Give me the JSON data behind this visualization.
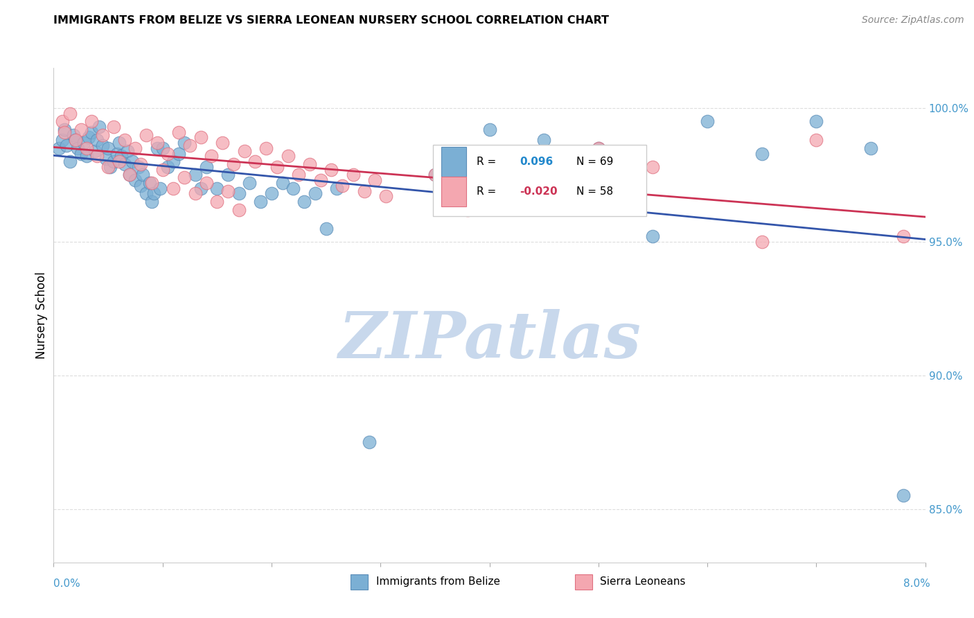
{
  "title": "IMMIGRANTS FROM BELIZE VS SIERRA LEONEAN NURSERY SCHOOL CORRELATION CHART",
  "source": "Source: ZipAtlas.com",
  "ylabel": "Nursery School",
  "xlim": [
    0.0,
    8.0
  ],
  "ylim": [
    83.0,
    101.5
  ],
  "yticks": [
    85.0,
    90.0,
    95.0,
    100.0
  ],
  "ytick_labels": [
    "85.0%",
    "90.0%",
    "95.0%",
    "100.0%"
  ],
  "xticks": [
    0.0,
    1.0,
    2.0,
    3.0,
    4.0,
    5.0,
    6.0,
    7.0,
    8.0
  ],
  "belize_color": "#7BAFD4",
  "belize_edge": "#5B8DB8",
  "sierra_color": "#F4A7B0",
  "sierra_edge": "#E07080",
  "belize_trend_color": "#3355AA",
  "sierra_trend_color": "#CC3355",
  "belize_x": [
    0.05,
    0.08,
    0.1,
    0.12,
    0.15,
    0.18,
    0.2,
    0.22,
    0.25,
    0.28,
    0.3,
    0.32,
    0.35,
    0.38,
    0.4,
    0.42,
    0.45,
    0.48,
    0.5,
    0.52,
    0.55,
    0.58,
    0.6,
    0.62,
    0.65,
    0.68,
    0.7,
    0.72,
    0.75,
    0.78,
    0.8,
    0.82,
    0.85,
    0.88,
    0.9,
    0.92,
    0.95,
    0.98,
    1.0,
    1.05,
    1.1,
    1.15,
    1.2,
    1.3,
    1.35,
    1.4,
    1.5,
    1.6,
    1.7,
    1.8,
    1.9,
    2.0,
    2.1,
    2.2,
    2.3,
    2.4,
    2.5,
    2.6,
    3.5,
    4.0,
    4.5,
    5.0,
    5.5,
    6.0,
    6.5,
    7.0,
    7.5,
    7.8,
    2.9
  ],
  "belize_y": [
    98.5,
    98.8,
    99.2,
    98.6,
    98.0,
    99.0,
    98.8,
    98.5,
    98.3,
    98.7,
    98.2,
    98.9,
    99.1,
    98.4,
    98.8,
    99.3,
    98.6,
    98.1,
    98.5,
    97.8,
    98.0,
    98.3,
    98.7,
    98.2,
    97.9,
    98.4,
    97.5,
    98.0,
    97.3,
    97.8,
    97.1,
    97.5,
    96.8,
    97.2,
    96.5,
    96.8,
    98.5,
    97.0,
    98.5,
    97.8,
    98.0,
    98.3,
    98.7,
    97.5,
    97.0,
    97.8,
    97.0,
    97.5,
    96.8,
    97.2,
    96.5,
    96.8,
    97.2,
    97.0,
    96.5,
    96.8,
    95.5,
    97.0,
    97.5,
    99.2,
    98.8,
    98.5,
    95.2,
    99.5,
    98.3,
    99.5,
    98.5,
    85.5,
    87.5
  ],
  "sierra_x": [
    0.08,
    0.15,
    0.25,
    0.35,
    0.45,
    0.55,
    0.65,
    0.75,
    0.85,
    0.95,
    1.05,
    1.15,
    1.25,
    1.35,
    1.45,
    1.55,
    1.65,
    1.75,
    1.85,
    1.95,
    2.05,
    2.15,
    2.25,
    2.35,
    2.45,
    2.55,
    2.65,
    2.75,
    2.85,
    2.95,
    3.05,
    3.5,
    3.8,
    4.0,
    4.2,
    4.5,
    5.0,
    5.5,
    6.5,
    7.0,
    7.8,
    0.1,
    0.2,
    0.3,
    0.4,
    0.5,
    0.6,
    0.7,
    0.8,
    0.9,
    1.0,
    1.1,
    1.2,
    1.3,
    1.4,
    1.5,
    1.6,
    1.7
  ],
  "sierra_y": [
    99.5,
    99.8,
    99.2,
    99.5,
    99.0,
    99.3,
    98.8,
    98.5,
    99.0,
    98.7,
    98.3,
    99.1,
    98.6,
    98.9,
    98.2,
    98.7,
    97.9,
    98.4,
    98.0,
    98.5,
    97.8,
    98.2,
    97.5,
    97.9,
    97.3,
    97.7,
    97.1,
    97.5,
    96.9,
    97.3,
    96.7,
    97.5,
    96.2,
    97.8,
    97.0,
    97.3,
    98.5,
    97.8,
    95.0,
    98.8,
    95.2,
    99.1,
    98.8,
    98.5,
    98.2,
    97.8,
    98.0,
    97.5,
    97.9,
    97.2,
    97.7,
    97.0,
    97.4,
    96.8,
    97.2,
    96.5,
    96.9,
    96.2
  ],
  "watermark_text": "ZIPatlas",
  "watermark_color": "#C8D8EC",
  "background_color": "#FFFFFF",
  "grid_color": "#DDDDDD",
  "title_color": "#000000",
  "source_color": "#888888",
  "ytick_color": "#4499CC",
  "xtick_edge_color": "#AAAAAA"
}
